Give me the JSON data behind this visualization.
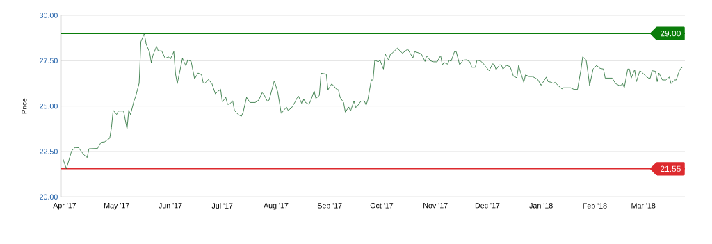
{
  "chart_data": {
    "type": "line",
    "ylabel": "Price",
    "color": "#1e6b30",
    "x": [
      "2017-03-31",
      "2017-04-02",
      "2017-04-05",
      "2017-04-07",
      "2017-04-09",
      "2017-04-12",
      "2017-04-14",
      "2017-04-15",
      "2017-04-20",
      "2017-04-22",
      "2017-04-24",
      "2017-04-27",
      "2017-04-28",
      "2017-04-29",
      "2017-05-01",
      "2017-05-02",
      "2017-05-05",
      "2017-05-07",
      "2017-05-08",
      "2017-05-09",
      "2017-05-11",
      "2017-05-12",
      "2017-05-14",
      "2017-05-15",
      "2017-05-17",
      "2017-05-18",
      "2017-05-20",
      "2017-05-21",
      "2017-05-22",
      "2017-05-24",
      "2017-05-25",
      "2017-05-27",
      "2017-05-29",
      "2017-05-31",
      "2017-06-01",
      "2017-06-03",
      "2017-06-04",
      "2017-06-05",
      "2017-06-08",
      "2017-06-10",
      "2017-06-11",
      "2017-06-13",
      "2017-06-15",
      "2017-06-17",
      "2017-06-19",
      "2017-06-20",
      "2017-06-21",
      "2017-06-23",
      "2017-06-25",
      "2017-06-27",
      "2017-06-28",
      "2017-06-30",
      "2017-07-01",
      "2017-07-03",
      "2017-07-04",
      "2017-07-05",
      "2017-07-07",
      "2017-07-08",
      "2017-07-10",
      "2017-07-12",
      "2017-07-13",
      "2017-07-15",
      "2017-07-17",
      "2017-07-20",
      "2017-07-22",
      "2017-07-24",
      "2017-07-25",
      "2017-07-27",
      "2017-07-28",
      "2017-07-31",
      "2017-08-02",
      "2017-08-04",
      "2017-08-06",
      "2017-08-07",
      "2017-08-08",
      "2017-08-10",
      "2017-08-12",
      "2017-08-13",
      "2017-08-14",
      "2017-08-16",
      "2017-08-17",
      "2017-08-18",
      "2017-08-20",
      "2017-08-21",
      "2017-08-23",
      "2017-08-24",
      "2017-08-26",
      "2017-08-27",
      "2017-08-30",
      "2017-08-31",
      "2017-09-02",
      "2017-09-03",
      "2017-09-05",
      "2017-09-06",
      "2017-09-07",
      "2017-09-09",
      "2017-09-10",
      "2017-09-12",
      "2017-09-13",
      "2017-09-15",
      "2017-09-16",
      "2017-09-17",
      "2017-09-19",
      "2017-09-21",
      "2017-09-22",
      "2017-09-23",
      "2017-09-25",
      "2017-09-26",
      "2017-09-27",
      "2017-09-29",
      "2017-09-30",
      "2017-10-02",
      "2017-10-03",
      "2017-10-05",
      "2017-10-06",
      "2017-10-07",
      "2017-10-10",
      "2017-10-13",
      "2017-10-16",
      "2017-10-19",
      "2017-10-20",
      "2017-10-23",
      "2017-10-24",
      "2017-10-26",
      "2017-10-27",
      "2017-10-29",
      "2017-10-31",
      "2017-11-02",
      "2017-11-04",
      "2017-11-05",
      "2017-11-06",
      "2017-11-08",
      "2017-11-09",
      "2017-11-10",
      "2017-11-12",
      "2017-11-13",
      "2017-11-15",
      "2017-11-17",
      "2017-11-19",
      "2017-11-21",
      "2017-11-22",
      "2017-11-24",
      "2017-11-25",
      "2017-11-27",
      "2017-11-29",
      "2017-11-30",
      "2017-12-02",
      "2017-12-04",
      "2017-12-05",
      "2017-12-06",
      "2017-12-08",
      "2017-12-09",
      "2017-12-10",
      "2017-12-12",
      "2017-12-14",
      "2017-12-15",
      "2017-12-16",
      "2017-12-18",
      "2017-12-19",
      "2017-12-20",
      "2017-12-22",
      "2017-12-23",
      "2017-12-25",
      "2017-12-27",
      "2017-12-30",
      "2018-01-01",
      "2018-01-04",
      "2018-01-05",
      "2018-01-07",
      "2018-01-08",
      "2018-01-09",
      "2018-01-11",
      "2018-01-13",
      "2018-01-14",
      "2018-01-18",
      "2018-01-20",
      "2018-01-22",
      "2018-01-24",
      "2018-01-25",
      "2018-01-27",
      "2018-01-28",
      "2018-01-29",
      "2018-01-31",
      "2018-02-02",
      "2018-02-04",
      "2018-02-06",
      "2018-02-07",
      "2018-02-11",
      "2018-02-13",
      "2018-02-15",
      "2018-02-16",
      "2018-02-17",
      "2018-02-18",
      "2018-02-20",
      "2018-02-21",
      "2018-02-22",
      "2018-02-24",
      "2018-02-25",
      "2018-02-27",
      "2018-02-28",
      "2018-03-02",
      "2018-03-04",
      "2018-03-05",
      "2018-03-06",
      "2018-03-08",
      "2018-03-09",
      "2018-03-10",
      "2018-03-12",
      "2018-03-14",
      "2018-03-16",
      "2018-03-17",
      "2018-03-19",
      "2018-03-20",
      "2018-03-22",
      "2018-03-24"
    ],
    "values": [
      22.1,
      21.55,
      22.53,
      22.72,
      22.71,
      22.33,
      22.17,
      22.65,
      22.67,
      23.01,
      23.03,
      23.23,
      23.81,
      24.77,
      24.54,
      24.73,
      24.73,
      23.74,
      24.77,
      24.54,
      25.28,
      25.54,
      26.27,
      28.55,
      29.0,
      28.42,
      27.97,
      27.4,
      27.81,
      28.29,
      28.04,
      28.04,
      27.63,
      27.71,
      27.59,
      28.0,
      26.76,
      26.24,
      27.63,
      27.21,
      27.55,
      27.46,
      26.5,
      26.82,
      26.73,
      26.27,
      26.27,
      26.46,
      26.24,
      25.67,
      25.77,
      25.93,
      25.23,
      25.48,
      25.1,
      25.1,
      25.29,
      24.76,
      24.55,
      24.44,
      24.66,
      25.48,
      25.2,
      25.2,
      25.33,
      25.74,
      25.64,
      25.27,
      25.33,
      26.4,
      25.77,
      24.6,
      24.82,
      24.95,
      24.76,
      24.91,
      25.23,
      25.43,
      25.54,
      25.11,
      25.39,
      25.2,
      25.1,
      25.29,
      25.83,
      25.42,
      25.58,
      26.81,
      26.76,
      25.9,
      26.21,
      26.15,
      25.92,
      25.9,
      25.48,
      25.2,
      24.67,
      24.95,
      24.72,
      25.29,
      24.92,
      25.01,
      25.27,
      25.28,
      25.05,
      25.35,
      26.44,
      26.44,
      27.53,
      27.44,
      27.53,
      27.04,
      27.87,
      27.53,
      27.85,
      27.91,
      28.19,
      27.91,
      28.14,
      27.65,
      28.0,
      27.91,
      27.85,
      27.46,
      27.78,
      27.5,
      27.44,
      27.44,
      27.78,
      27.27,
      27.4,
      27.31,
      27.53,
      27.46,
      28.0,
      28.0,
      27.27,
      27.53,
      27.55,
      27.42,
      27.14,
      27.14,
      27.53,
      27.49,
      27.31,
      27.18,
      26.95,
      27.33,
      27.29,
      27.01,
      27.27,
      27.27,
      27.04,
      27.24,
      27.18,
      26.95,
      26.65,
      26.56,
      27.23,
      26.91,
      26.31,
      26.72,
      26.63,
      26.63,
      26.47,
      26.15,
      26.6,
      26.35,
      26.31,
      26.24,
      26.31,
      26.12,
      25.95,
      26.01,
      26.01,
      25.92,
      25.92,
      27.01,
      27.72,
      27.53,
      26.88,
      26.14,
      27.04,
      27.24,
      27.08,
      27.04,
      26.54,
      26.54,
      26.24,
      26.14,
      26.14,
      26.24,
      26.01,
      27.04,
      27.04,
      26.54,
      27.01,
      26.35,
      26.95,
      26.88,
      26.69,
      26.54,
      26.54,
      26.95,
      26.92,
      26.35,
      26.82,
      26.44,
      26.44,
      26.6,
      26.24,
      26.44,
      26.44,
      27.01,
      27.18
    ],
    "xlim": [
      "2017-03-30",
      "2018-03-25"
    ],
    "xticks": [
      {
        "value": "2017-04-01",
        "label": "Apr '17"
      },
      {
        "value": "2017-05-01",
        "label": "May '17"
      },
      {
        "value": "2017-06-01",
        "label": "Jun '17"
      },
      {
        "value": "2017-07-01",
        "label": "Jul '17"
      },
      {
        "value": "2017-08-01",
        "label": "Aug '17"
      },
      {
        "value": "2017-09-01",
        "label": "Sep '17"
      },
      {
        "value": "2017-10-01",
        "label": "Oct '17"
      },
      {
        "value": "2017-11-01",
        "label": "Nov '17"
      },
      {
        "value": "2017-12-01",
        "label": "Dec '17"
      },
      {
        "value": "2018-01-01",
        "label": "Jan '18"
      },
      {
        "value": "2018-02-01",
        "label": "Feb '18"
      },
      {
        "value": "2018-03-01",
        "label": "Mar '18"
      }
    ],
    "ylim": [
      20,
      30
    ],
    "yticks": [
      {
        "value": 20,
        "label": "20.00"
      },
      {
        "value": 22.5,
        "label": "22.50"
      },
      {
        "value": 25,
        "label": "25.00"
      },
      {
        "value": 27.5,
        "label": "27.50"
      },
      {
        "value": 30,
        "label": "30.00"
      }
    ],
    "grid": "y",
    "ref_lines": [
      {
        "axis": "y",
        "value": 29.0,
        "label": "29.00",
        "color": "#0a7d0a"
      },
      {
        "axis": "y",
        "value": 21.55,
        "label": "21.55",
        "color": "#dd2a2e"
      },
      {
        "axis": "y",
        "value": 26.0,
        "color": "#9bb555",
        "line_style": "dashed"
      }
    ]
  }
}
